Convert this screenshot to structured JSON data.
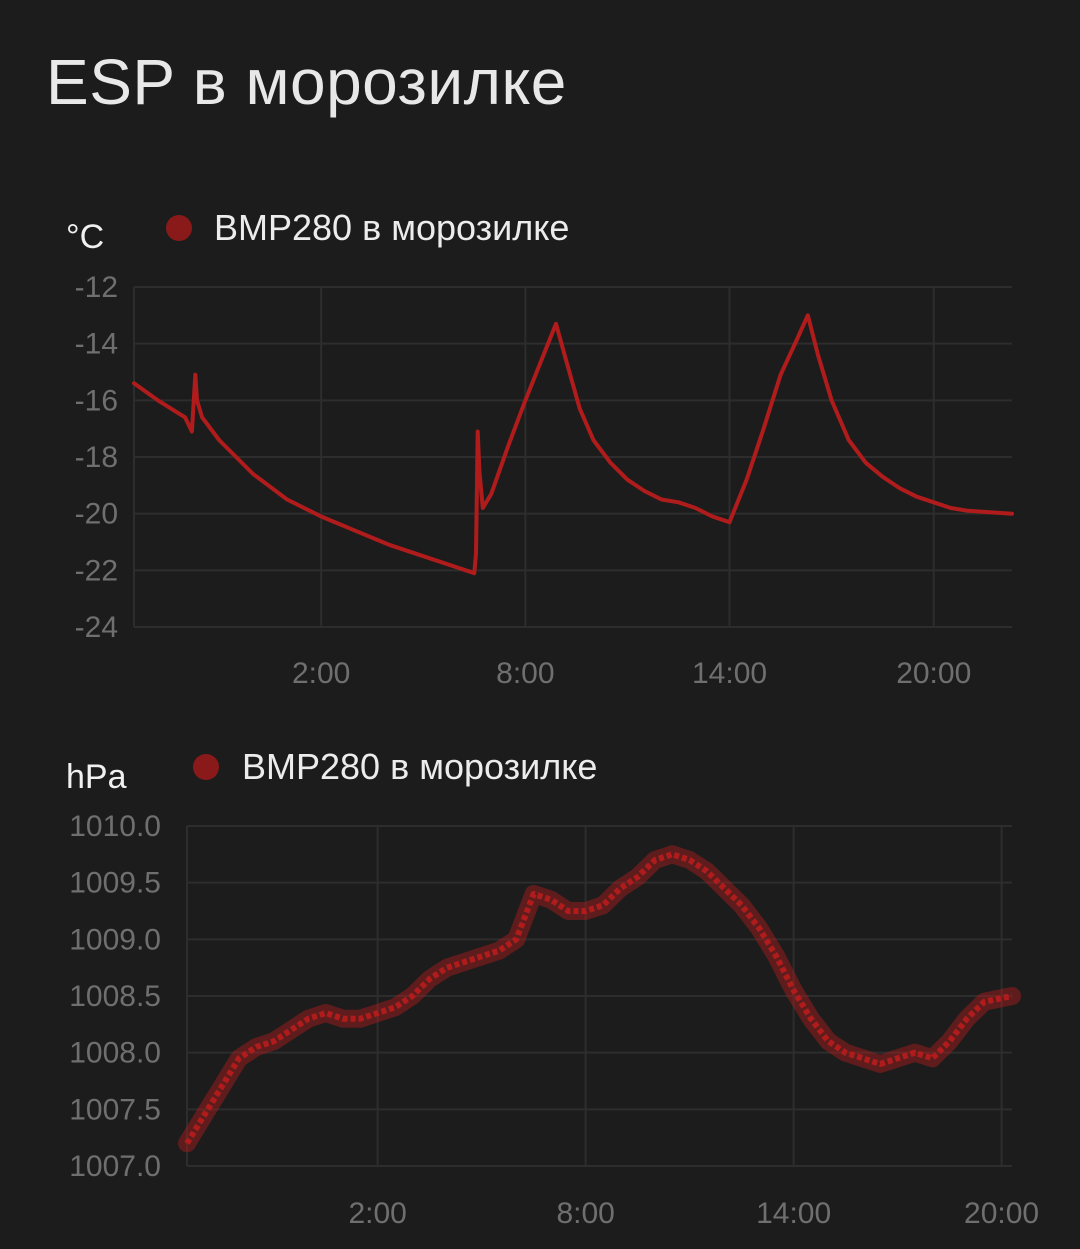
{
  "title": "ESP в морозилке",
  "chart_data": [
    {
      "type": "line",
      "ylabel": "°C",
      "legend": "BMP280 в морозилке",
      "series": [
        {
          "name": "BMP280 в морозилке",
          "color": "#b01c1c"
        }
      ],
      "ylim": [
        -24,
        -12
      ],
      "y_ticks": [
        "-12",
        "-14",
        "-16",
        "-18",
        "-20",
        "-22",
        "-24"
      ],
      "x_ticks": [
        "2:00",
        "8:00",
        "14:00",
        "20:00"
      ],
      "x_hours": [
        -3.5,
        22.3
      ],
      "x_tick_hours": [
        2,
        8,
        14,
        20
      ],
      "grid": true,
      "legend_position": "top",
      "points": [
        [
          -3.5,
          -15.4
        ],
        [
          -2.8,
          -16.0
        ],
        [
          -2.0,
          -16.6
        ],
        [
          -1.8,
          -17.1
        ],
        [
          -1.7,
          -15.1
        ],
        [
          -1.65,
          -16.0
        ],
        [
          -1.5,
          -16.6
        ],
        [
          -1.0,
          -17.4
        ],
        [
          0.0,
          -18.6
        ],
        [
          1.0,
          -19.5
        ],
        [
          2.0,
          -20.1
        ],
        [
          3.0,
          -20.6
        ],
        [
          4.0,
          -21.1
        ],
        [
          5.0,
          -21.5
        ],
        [
          6.0,
          -21.9
        ],
        [
          6.5,
          -22.1
        ],
        [
          6.55,
          -21.4
        ],
        [
          6.6,
          -17.1
        ],
        [
          6.65,
          -18.5
        ],
        [
          6.75,
          -19.8
        ],
        [
          7.0,
          -19.3
        ],
        [
          7.5,
          -17.6
        ],
        [
          8.0,
          -16.0
        ],
        [
          8.5,
          -14.5
        ],
        [
          8.9,
          -13.3
        ],
        [
          9.2,
          -14.6
        ],
        [
          9.6,
          -16.3
        ],
        [
          10.0,
          -17.4
        ],
        [
          10.5,
          -18.2
        ],
        [
          11.0,
          -18.8
        ],
        [
          11.5,
          -19.2
        ],
        [
          12.0,
          -19.5
        ],
        [
          12.5,
          -19.6
        ],
        [
          13.0,
          -19.8
        ],
        [
          13.5,
          -20.1
        ],
        [
          14.0,
          -20.3
        ],
        [
          14.5,
          -18.8
        ],
        [
          15.0,
          -17.0
        ],
        [
          15.5,
          -15.1
        ],
        [
          16.0,
          -13.8
        ],
        [
          16.3,
          -13.0
        ],
        [
          16.6,
          -14.4
        ],
        [
          17.0,
          -16.0
        ],
        [
          17.5,
          -17.4
        ],
        [
          18.0,
          -18.2
        ],
        [
          18.5,
          -18.7
        ],
        [
          19.0,
          -19.1
        ],
        [
          19.5,
          -19.4
        ],
        [
          20.0,
          -19.6
        ],
        [
          20.5,
          -19.8
        ],
        [
          21.0,
          -19.9
        ],
        [
          22.3,
          -20.0
        ]
      ]
    },
    {
      "type": "line",
      "ylabel": "hPa",
      "legend": "BMP280 в морозилке",
      "series": [
        {
          "name": "BMP280 в морозилке",
          "color": "#b01c1c"
        }
      ],
      "ylim": [
        1007.0,
        1010.0
      ],
      "y_ticks": [
        "1010.0",
        "1009.5",
        "1009.0",
        "1008.5",
        "1008.0",
        "1007.5",
        "1007.0"
      ],
      "x_ticks": [
        "2:00",
        "8:00",
        "14:00",
        "20:00"
      ],
      "x_hours": [
        -3.5,
        20.3
      ],
      "x_tick_hours": [
        2,
        8,
        14,
        20
      ],
      "grid": true,
      "legend_position": "top",
      "points": [
        [
          -3.5,
          1007.2
        ],
        [
          -3.0,
          1007.45
        ],
        [
          -2.5,
          1007.7
        ],
        [
          -2.0,
          1007.95
        ],
        [
          -1.5,
          1008.05
        ],
        [
          -1.0,
          1008.1
        ],
        [
          -0.5,
          1008.2
        ],
        [
          0.0,
          1008.3
        ],
        [
          0.5,
          1008.35
        ],
        [
          1.0,
          1008.3
        ],
        [
          1.5,
          1008.3
        ],
        [
          2.0,
          1008.35
        ],
        [
          2.5,
          1008.4
        ],
        [
          3.0,
          1008.5
        ],
        [
          3.5,
          1008.65
        ],
        [
          4.0,
          1008.75
        ],
        [
          4.5,
          1008.8
        ],
        [
          5.0,
          1008.85
        ],
        [
          5.5,
          1008.9
        ],
        [
          6.0,
          1009.0
        ],
        [
          6.5,
          1009.4
        ],
        [
          7.0,
          1009.35
        ],
        [
          7.5,
          1009.25
        ],
        [
          8.0,
          1009.25
        ],
        [
          8.5,
          1009.3
        ],
        [
          9.0,
          1009.45
        ],
        [
          9.5,
          1009.55
        ],
        [
          10.0,
          1009.7
        ],
        [
          10.5,
          1009.75
        ],
        [
          11.0,
          1009.7
        ],
        [
          11.5,
          1009.6
        ],
        [
          12.0,
          1009.45
        ],
        [
          12.5,
          1009.3
        ],
        [
          13.0,
          1009.1
        ],
        [
          13.5,
          1008.85
        ],
        [
          14.0,
          1008.55
        ],
        [
          14.5,
          1008.3
        ],
        [
          15.0,
          1008.1
        ],
        [
          15.5,
          1008.0
        ],
        [
          16.0,
          1007.95
        ],
        [
          16.5,
          1007.9
        ],
        [
          17.0,
          1007.95
        ],
        [
          17.5,
          1008.0
        ],
        [
          18.0,
          1007.95
        ],
        [
          18.5,
          1008.1
        ],
        [
          19.0,
          1008.3
        ],
        [
          19.5,
          1008.45
        ],
        [
          20.3,
          1008.5
        ]
      ]
    }
  ]
}
